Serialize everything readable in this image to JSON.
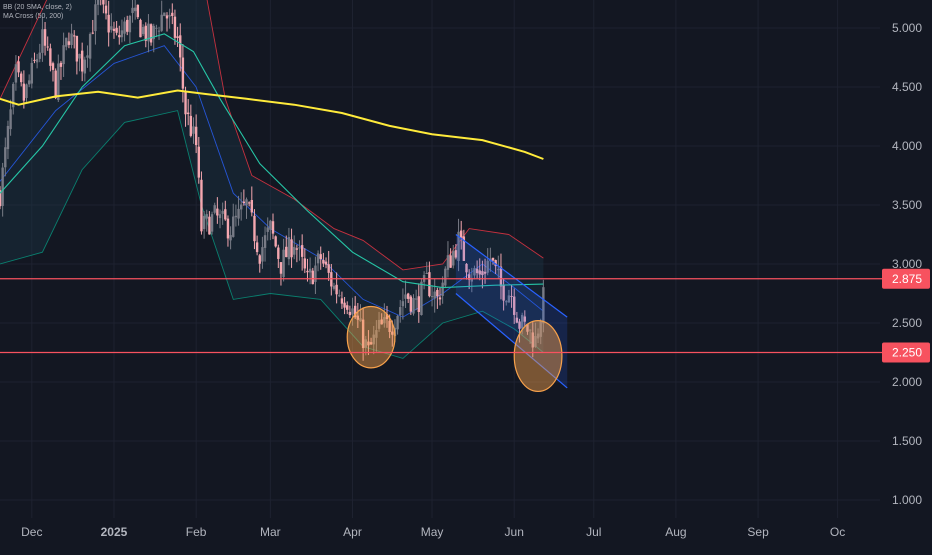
{
  "legend": {
    "bb": "BB (20 SMA, close, 2)",
    "ma_cross": "MA Cross (50, 200)"
  },
  "colors": {
    "background": "#131722",
    "grid": "#1e2230",
    "axis_text": "#b2b5be",
    "up": "#787b86",
    "down": "#f4a7b0",
    "bb_basis": "#2962ff",
    "bb_upper": "#f23645",
    "bb_lower": "#089981",
    "bb_fill": "#1e3a4a",
    "ma50": "#26c6a6",
    "ma200": "#ffeb3b",
    "hline": "#f7525f",
    "channel": "#2962ff",
    "ellipse": "#f7a14b"
  },
  "chart_data": {
    "type": "candlestick",
    "title": "",
    "xlabel": "",
    "ylabel": "",
    "ylim": [
      0.8,
      5.3
    ],
    "y_ticks": [
      "5.000",
      "4.500",
      "4.000",
      "3.500",
      "3.000",
      "2.500",
      "2.000",
      "1.500",
      "1.000"
    ],
    "y_tick_values": [
      5.0,
      4.5,
      4.0,
      3.5,
      3.0,
      2.5,
      2.0,
      1.5,
      1.0
    ],
    "x_ticks": [
      {
        "label": "Dec",
        "date": "2024-12-01"
      },
      {
        "label": "2025",
        "date": "2025-01-01"
      },
      {
        "label": "Feb",
        "date": "2025-02-01"
      },
      {
        "label": "Mar",
        "date": "2025-03-01"
      },
      {
        "label": "Apr",
        "date": "2025-04-01"
      },
      {
        "label": "May",
        "date": "2025-05-01"
      },
      {
        "label": "Jun",
        "date": "2025-06-01"
      },
      {
        "label": "Jul",
        "date": "2025-07-01"
      },
      {
        "label": "Aug",
        "date": "2025-08-01"
      },
      {
        "label": "Sep",
        "date": "2025-09-01"
      },
      {
        "label": "Oc",
        "date": "2025-10-01"
      }
    ],
    "xlim": [
      "2024-11-19",
      "2025-10-17"
    ],
    "horizontal_levels": [
      {
        "label": "2.875",
        "value": 2.875
      },
      {
        "label": "2.250",
        "value": 2.25
      }
    ],
    "price_path": [
      [
        "2024-11-19",
        3.6
      ],
      [
        "2024-11-25",
        4.6
      ],
      [
        "2024-11-28",
        4.4
      ],
      [
        "2024-12-05",
        4.9
      ],
      [
        "2024-12-10",
        4.5
      ],
      [
        "2024-12-15",
        4.95
      ],
      [
        "2024-12-20",
        4.7
      ],
      [
        "2024-12-26",
        5.2
      ],
      [
        "2025-01-02",
        4.9
      ],
      [
        "2025-01-08",
        5.1
      ],
      [
        "2025-01-15",
        4.9
      ],
      [
        "2025-01-20",
        5.15
      ],
      [
        "2025-01-25",
        4.9
      ],
      [
        "2025-01-28",
        4.3
      ],
      [
        "2025-02-01",
        4.0
      ],
      [
        "2025-02-03",
        3.3
      ],
      [
        "2025-02-08",
        3.4
      ],
      [
        "2025-02-14",
        3.3
      ],
      [
        "2025-02-20",
        3.5
      ],
      [
        "2025-02-25",
        3.1
      ],
      [
        "2025-03-01",
        3.3
      ],
      [
        "2025-03-05",
        3.0
      ],
      [
        "2025-03-10",
        3.2
      ],
      [
        "2025-03-15",
        2.85
      ],
      [
        "2025-03-20",
        3.05
      ],
      [
        "2025-03-25",
        2.8
      ],
      [
        "2025-03-30",
        2.7
      ],
      [
        "2025-04-03",
        2.5
      ],
      [
        "2025-04-07",
        2.25
      ],
      [
        "2025-04-11",
        2.45
      ],
      [
        "2025-04-16",
        2.5
      ],
      [
        "2025-04-21",
        2.75
      ],
      [
        "2025-04-25",
        2.65
      ],
      [
        "2025-04-29",
        2.85
      ],
      [
        "2025-05-03",
        2.7
      ],
      [
        "2025-05-07",
        3.0
      ],
      [
        "2025-05-11",
        3.2
      ],
      [
        "2025-05-15",
        2.95
      ],
      [
        "2025-05-19",
        2.9
      ],
      [
        "2025-05-23",
        3.05
      ],
      [
        "2025-05-27",
        2.8
      ],
      [
        "2025-05-31",
        2.75
      ],
      [
        "2025-06-03",
        2.5
      ],
      [
        "2025-06-06",
        2.45
      ],
      [
        "2025-06-09",
        2.35
      ],
      [
        "2025-06-12",
        2.7
      ]
    ],
    "ma200": [
      [
        "2024-11-19",
        4.4
      ],
      [
        "2024-11-26",
        4.35
      ],
      [
        "2024-12-10",
        4.42
      ],
      [
        "2024-12-26",
        4.46
      ],
      [
        "2025-01-10",
        4.41
      ],
      [
        "2025-01-25",
        4.47
      ],
      [
        "2025-02-05",
        4.44
      ],
      [
        "2025-02-20",
        4.4
      ],
      [
        "2025-03-10",
        4.35
      ],
      [
        "2025-03-28",
        4.28
      ],
      [
        "2025-04-15",
        4.17
      ],
      [
        "2025-05-01",
        4.1
      ],
      [
        "2025-05-20",
        4.05
      ],
      [
        "2025-06-05",
        3.95
      ],
      [
        "2025-06-12",
        3.89
      ]
    ],
    "ma50": [
      [
        "2024-11-19",
        3.6
      ],
      [
        "2024-12-05",
        4.0
      ],
      [
        "2024-12-20",
        4.5
      ],
      [
        "2025-01-05",
        4.85
      ],
      [
        "2025-01-20",
        4.95
      ],
      [
        "2025-01-31",
        4.8
      ],
      [
        "2025-02-10",
        4.4
      ],
      [
        "2025-02-25",
        3.85
      ],
      [
        "2025-03-15",
        3.45
      ],
      [
        "2025-04-01",
        3.1
      ],
      [
        "2025-04-20",
        2.85
      ],
      [
        "2025-05-05",
        2.8
      ],
      [
        "2025-05-25",
        2.82
      ],
      [
        "2025-06-12",
        2.83
      ]
    ],
    "bb_basis": [
      [
        "2024-11-19",
        3.7
      ],
      [
        "2024-12-10",
        4.3
      ],
      [
        "2025-01-01",
        4.7
      ],
      [
        "2025-01-20",
        4.85
      ],
      [
        "2025-02-01",
        4.5
      ],
      [
        "2025-02-15",
        3.6
      ],
      [
        "2025-03-01",
        3.3
      ],
      [
        "2025-03-20",
        3.05
      ],
      [
        "2025-04-05",
        2.7
      ],
      [
        "2025-04-20",
        2.55
      ],
      [
        "2025-05-05",
        2.75
      ],
      [
        "2025-05-20",
        3.0
      ],
      [
        "2025-06-01",
        2.8
      ],
      [
        "2025-06-12",
        2.6
      ]
    ],
    "bb_upper": [
      [
        "2024-11-19",
        4.4
      ],
      [
        "2024-12-10",
        5.4
      ],
      [
        "2025-01-01",
        5.5
      ],
      [
        "2025-01-20",
        5.4
      ],
      [
        "2025-02-03",
        5.5
      ],
      [
        "2025-02-12",
        4.4
      ],
      [
        "2025-02-22",
        3.75
      ],
      [
        "2025-03-10",
        3.55
      ],
      [
        "2025-03-25",
        3.3
      ],
      [
        "2025-04-05",
        3.2
      ],
      [
        "2025-04-20",
        2.95
      ],
      [
        "2025-05-05",
        3.0
      ],
      [
        "2025-05-15",
        3.3
      ],
      [
        "2025-05-30",
        3.25
      ],
      [
        "2025-06-12",
        3.05
      ]
    ],
    "bb_lower": [
      [
        "2024-11-19",
        3.0
      ],
      [
        "2024-12-05",
        3.1
      ],
      [
        "2024-12-20",
        3.8
      ],
      [
        "2025-01-05",
        4.2
      ],
      [
        "2025-01-25",
        4.3
      ],
      [
        "2025-02-03",
        3.5
      ],
      [
        "2025-02-15",
        2.7
      ],
      [
        "2025-03-01",
        2.75
      ],
      [
        "2025-03-20",
        2.7
      ],
      [
        "2025-04-05",
        2.3
      ],
      [
        "2025-04-20",
        2.2
      ],
      [
        "2025-05-05",
        2.5
      ],
      [
        "2025-05-20",
        2.6
      ],
      [
        "2025-06-01",
        2.45
      ],
      [
        "2025-06-12",
        2.25
      ]
    ],
    "channel": {
      "upper": [
        [
          "2025-05-10",
          3.25
        ],
        [
          "2025-06-21",
          2.55
        ]
      ],
      "lower": [
        [
          "2025-05-10",
          2.75
        ],
        [
          "2025-06-21",
          1.95
        ]
      ],
      "fill": "#2962ff"
    },
    "highlight_ellipses": [
      {
        "center_date": "2025-04-08",
        "center_value": 2.38,
        "span_days": 18,
        "span_value": 0.52
      },
      {
        "center_date": "2025-06-10",
        "center_value": 2.22,
        "span_days": 18,
        "span_value": 0.6
      }
    ]
  }
}
